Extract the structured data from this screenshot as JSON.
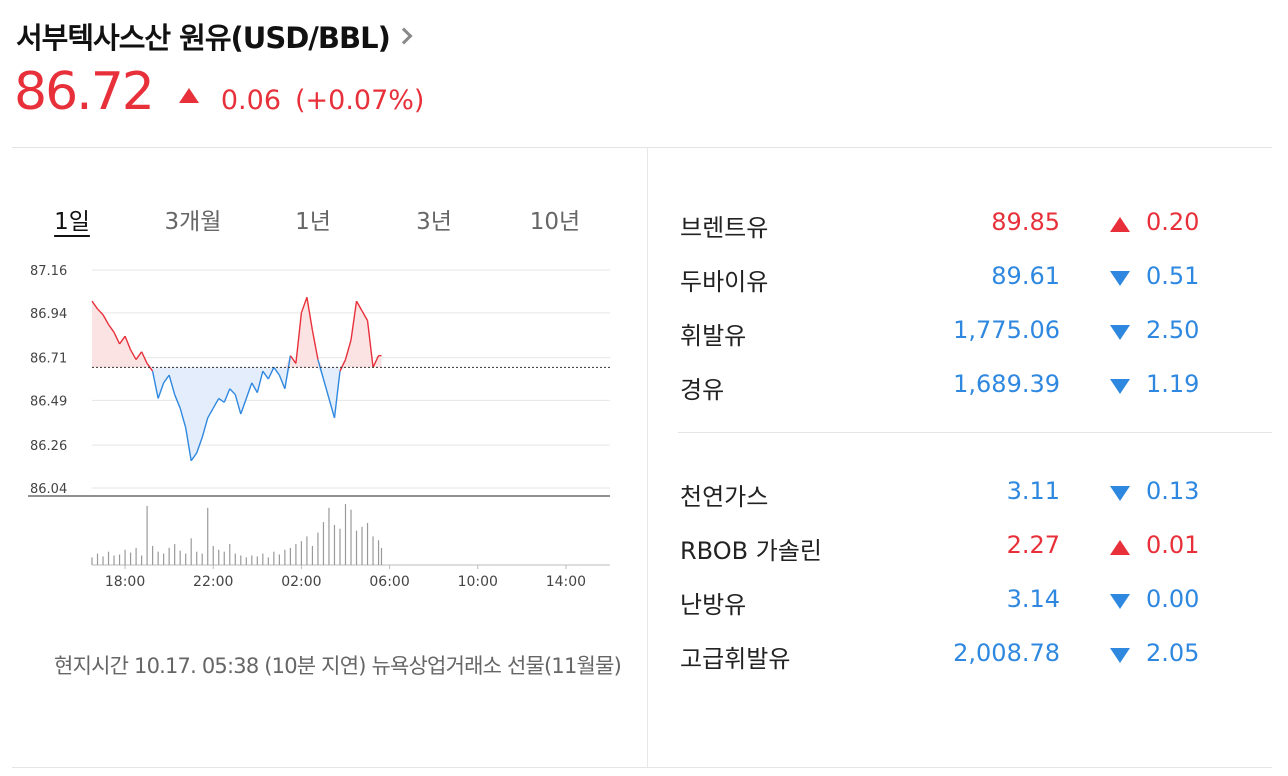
{
  "header": {
    "title": "서부텍사스산 원유(USD/BBL)",
    "price": "86.72",
    "change": "0.06",
    "change_pct": "(+0.07%)",
    "direction": "up"
  },
  "tabs": [
    {
      "label": "1일",
      "active": true
    },
    {
      "label": "3개월",
      "active": false
    },
    {
      "label": "1년",
      "active": false
    },
    {
      "label": "3년",
      "active": false
    },
    {
      "label": "10년",
      "active": false
    }
  ],
  "footnote": "현지시간 10.17. 05:38 (10분 지연) 뉴욕상업거래소 선물(11월물)",
  "colors": {
    "up": "#e8303a",
    "down": "#2f88e0",
    "up_fill": "#fbe3e4",
    "down_fill": "#e3edfb"
  },
  "chart_data": {
    "type": "line",
    "x_unit": "hour",
    "x_start": "16:30",
    "x_end": "16:00",
    "x_ticks": [
      "18:00",
      "22:00",
      "02:00",
      "06:00",
      "10:00",
      "14:00"
    ],
    "y_ticks": [
      "87.16",
      "86.94",
      "86.71",
      "86.49",
      "86.26",
      "86.04"
    ],
    "ylim": [
      86.04,
      87.16
    ],
    "baseline": 86.66,
    "grid": true,
    "series": [
      {
        "x": [
          "16:30",
          "16:45",
          "17:00",
          "17:15",
          "17:30",
          "17:45",
          "18:00",
          "18:15",
          "18:30",
          "18:45",
          "19:00",
          "19:15",
          "19:30",
          "19:45",
          "20:00",
          "20:15",
          "20:30",
          "20:45",
          "21:00",
          "21:15",
          "21:30",
          "21:45",
          "22:00",
          "22:15",
          "22:30",
          "22:45",
          "23:00",
          "23:15",
          "23:30",
          "23:45",
          "00:00",
          "00:15",
          "00:30",
          "00:45",
          "01:00",
          "01:15",
          "01:30",
          "01:45",
          "02:00",
          "02:15",
          "02:30",
          "02:45",
          "03:00",
          "03:15",
          "03:30",
          "03:45",
          "04:00",
          "04:15",
          "04:30",
          "04:45",
          "05:00",
          "05:15",
          "05:30",
          "05:38"
        ],
        "y": [
          87.0,
          86.96,
          86.93,
          86.88,
          86.84,
          86.78,
          86.82,
          86.75,
          86.7,
          86.74,
          86.68,
          86.64,
          86.5,
          86.58,
          86.62,
          86.52,
          86.45,
          86.35,
          86.18,
          86.22,
          86.3,
          86.4,
          86.45,
          86.5,
          86.48,
          86.55,
          86.52,
          86.42,
          86.5,
          86.58,
          86.53,
          86.64,
          86.6,
          86.66,
          86.62,
          86.55,
          86.72,
          86.68,
          86.94,
          87.02,
          86.85,
          86.7,
          86.6,
          86.5,
          86.4,
          86.64,
          86.7,
          86.8,
          87.0,
          86.95,
          86.9,
          86.66,
          86.72,
          86.72
        ]
      },
      {
        "name": "volume",
        "x": [
          "16:30",
          "16:45",
          "17:00",
          "17:15",
          "17:30",
          "17:45",
          "18:00",
          "18:15",
          "18:30",
          "18:45",
          "19:00",
          "19:15",
          "19:30",
          "19:45",
          "20:00",
          "20:15",
          "20:30",
          "20:45",
          "21:00",
          "21:15",
          "21:30",
          "21:45",
          "22:00",
          "22:15",
          "22:30",
          "22:45",
          "23:00",
          "23:15",
          "23:30",
          "23:45",
          "00:00",
          "00:15",
          "00:30",
          "00:45",
          "01:00",
          "01:15",
          "01:30",
          "01:45",
          "02:00",
          "02:15",
          "02:30",
          "02:45",
          "03:00",
          "03:15",
          "03:30",
          "03:45",
          "04:00",
          "04:15",
          "04:30",
          "04:45",
          "05:00",
          "05:15",
          "05:30",
          "05:38"
        ],
        "y": [
          8,
          12,
          9,
          14,
          10,
          11,
          16,
          13,
          18,
          10,
          62,
          20,
          14,
          12,
          18,
          22,
          15,
          12,
          28,
          14,
          12,
          60,
          20,
          16,
          14,
          22,
          12,
          10,
          8,
          10,
          9,
          12,
          8,
          14,
          11,
          16,
          18,
          22,
          25,
          30,
          20,
          34,
          45,
          60,
          42,
          38,
          64,
          58,
          36,
          40,
          44,
          30,
          26,
          18
        ]
      }
    ]
  },
  "commodities_group1": [
    {
      "name": "브렌트유",
      "value": "89.85",
      "direction": "up",
      "change": "0.20"
    },
    {
      "name": "두바이유",
      "value": "89.61",
      "direction": "down",
      "change": "0.51"
    },
    {
      "name": "휘발유",
      "value": "1,775.06",
      "direction": "down",
      "change": "2.50"
    },
    {
      "name": "경유",
      "value": "1,689.39",
      "direction": "down",
      "change": "1.19"
    }
  ],
  "commodities_group2": [
    {
      "name": "천연가스",
      "value": "3.11",
      "direction": "down",
      "change": "0.13"
    },
    {
      "name": "RBOB 가솔린",
      "value": "2.27",
      "direction": "up",
      "change": "0.01"
    },
    {
      "name": "난방유",
      "value": "3.14",
      "direction": "down",
      "change": "0.00"
    },
    {
      "name": "고급휘발유",
      "value": "2,008.78",
      "direction": "down",
      "change": "2.05"
    }
  ]
}
